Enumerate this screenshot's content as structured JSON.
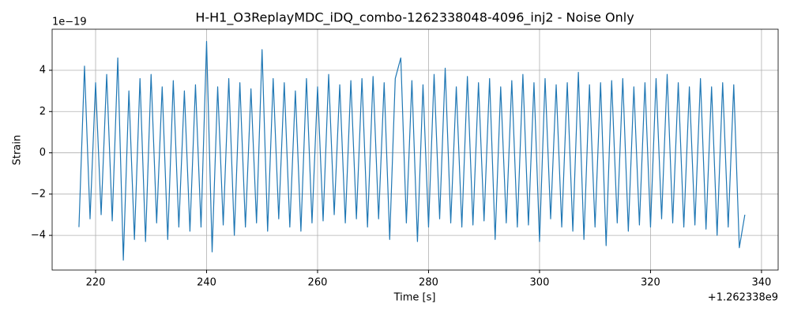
{
  "chart_data": {
    "type": "line",
    "title": "H-H1_O3ReplayMDC_iDQ_combo-1262338048-4096_inj2 - Noise Only",
    "xlabel": "Time [s]",
    "ylabel": "Strain",
    "y_offset_label": "1e−19",
    "x_offset_label": "+1.262338e9",
    "x": [
      217,
      218,
      219,
      220,
      221,
      222,
      223,
      224,
      225,
      226,
      227,
      228,
      229,
      230,
      231,
      232,
      233,
      234,
      235,
      236,
      237,
      238,
      239,
      240,
      241,
      242,
      243,
      244,
      245,
      246,
      247,
      248,
      249,
      250,
      251,
      252,
      253,
      254,
      255,
      256,
      257,
      258,
      259,
      260,
      261,
      262,
      263,
      264,
      265,
      266,
      267,
      268,
      269,
      270,
      271,
      272,
      273,
      274,
      275,
      276,
      277,
      278,
      279,
      280,
      281,
      282,
      283,
      284,
      285,
      286,
      287,
      288,
      289,
      290,
      291,
      292,
      293,
      294,
      295,
      296,
      297,
      298,
      299,
      300,
      301,
      302,
      303,
      304,
      305,
      306,
      307,
      308,
      309,
      310,
      311,
      312,
      313,
      314,
      315,
      316,
      317,
      318,
      319,
      320,
      321,
      322,
      323,
      324,
      325,
      326,
      327,
      328,
      329,
      330,
      331,
      332,
      333,
      334,
      335,
      336,
      337
    ],
    "series": [
      {
        "name": "Strain",
        "color": "#1f77b4",
        "values": [
          -3.6,
          4.2,
          -3.2,
          3.4,
          -3.0,
          3.8,
          -3.3,
          4.6,
          -5.2,
          3.0,
          -4.2,
          3.6,
          -4.3,
          3.8,
          -3.4,
          3.2,
          -4.2,
          3.5,
          -3.6,
          3.0,
          -3.8,
          3.3,
          -3.6,
          5.4,
          -4.8,
          3.2,
          -3.5,
          3.6,
          -4.0,
          3.4,
          -3.6,
          3.1,
          -3.4,
          5.0,
          -3.8,
          3.6,
          -3.2,
          3.4,
          -3.6,
          3.0,
          -3.8,
          3.6,
          -3.4,
          3.2,
          -3.3,
          3.8,
          -3.0,
          3.3,
          -3.4,
          3.5,
          -3.2,
          3.6,
          -3.6,
          3.7,
          -3.2,
          3.4,
          -4.2,
          3.6,
          4.6,
          -3.4,
          3.5,
          -4.3,
          3.3,
          -3.6,
          3.8,
          -3.2,
          4.1,
          -3.4,
          3.2,
          -3.6,
          3.7,
          -3.5,
          3.4,
          -3.3,
          3.6,
          -4.2,
          3.2,
          -3.4,
          3.5,
          -3.6,
          3.8,
          -3.5,
          3.4,
          -4.3,
          3.6,
          -3.2,
          3.3,
          -3.6,
          3.4,
          -3.8,
          3.9,
          -4.2,
          3.3,
          -3.6,
          3.4,
          -4.5,
          3.5,
          -3.4,
          3.6,
          -3.8,
          3.2,
          -3.5,
          3.4,
          -3.6,
          3.6,
          -3.2,
          3.8,
          -3.4,
          3.4,
          -3.6,
          3.2,
          -3.5,
          3.6,
          -3.7,
          3.2,
          -4.0,
          3.4,
          -3.6,
          3.3,
          -4.6,
          -3.0
        ]
      }
    ],
    "xlim": [
      212.17,
      343.0
    ],
    "ylim": [
      -5.68,
      5.99
    ],
    "xticks": [
      220,
      240,
      260,
      280,
      300,
      320,
      340
    ],
    "yticks": [
      {
        "value": -4,
        "label": "−4"
      },
      {
        "value": -2,
        "label": "−2"
      },
      0,
      2,
      4
    ],
    "grid": true
  }
}
